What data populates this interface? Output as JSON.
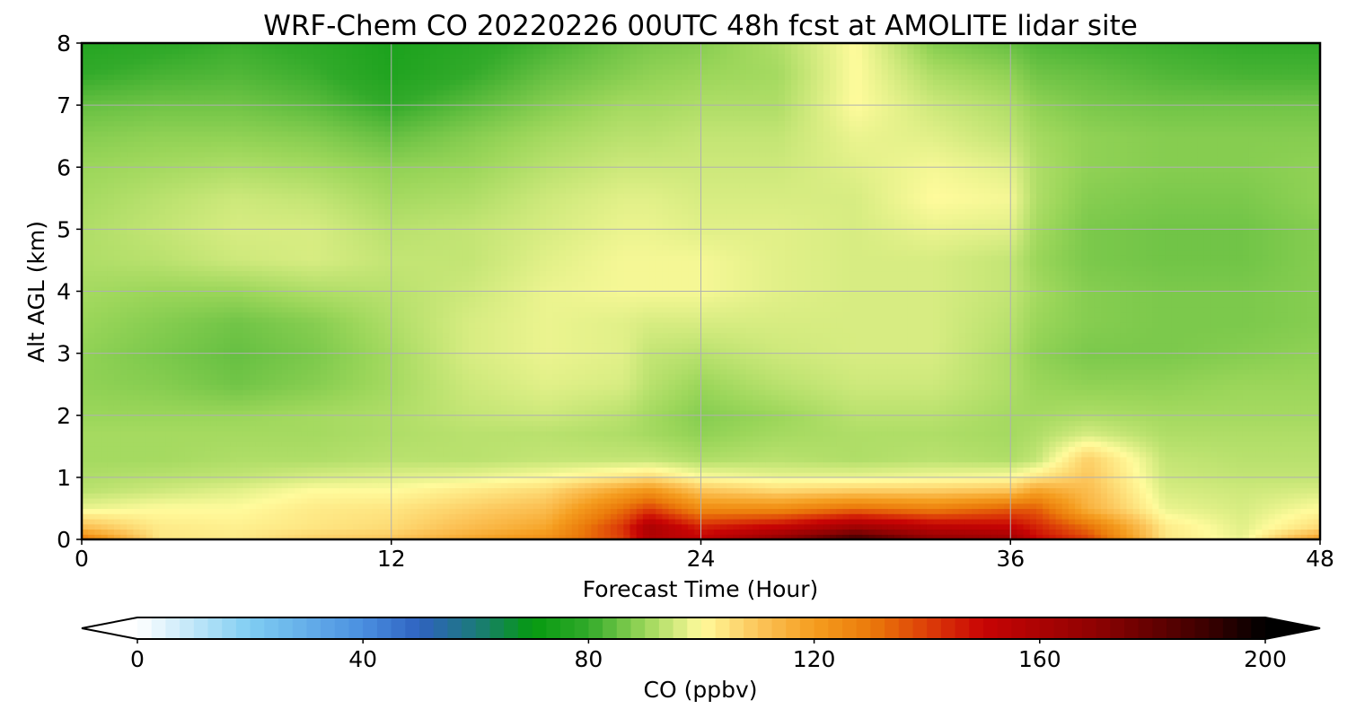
{
  "chart_data": {
    "type": "heatmap",
    "title": "WRF-Chem CO  20220226 00UTC 48h fcst at AMOLITE lidar site",
    "xlabel": "Forecast Time (Hour)",
    "ylabel": "Alt AGL (km)",
    "xlim": [
      0,
      48
    ],
    "ylim": [
      0,
      8
    ],
    "x_ticks": [
      0,
      12,
      24,
      36,
      48
    ],
    "y_ticks": [
      0,
      1,
      2,
      3,
      4,
      5,
      6,
      7,
      8
    ],
    "grid": true,
    "x_hours": [
      0,
      3,
      6,
      9,
      12,
      15,
      18,
      21,
      22,
      24,
      27,
      30,
      33,
      36,
      37,
      39,
      42,
      45,
      48
    ],
    "y_km": [
      0,
      0.2,
      0.5,
      0.8,
      1.0,
      1.3,
      1.7,
      2.0,
      2.5,
      3.0,
      3.5,
      4.0,
      4.5,
      5.0,
      5.5,
      6.0,
      6.5,
      7.0,
      7.5,
      8.0
    ],
    "values_ppbv": [
      [
        130,
        104,
        103,
        108,
        110,
        118,
        124,
        140,
        158,
        152,
        170,
        190,
        170,
        165,
        150,
        140,
        104,
        98,
        120
      ],
      [
        112,
        103,
        102,
        104,
        106,
        112,
        118,
        142,
        160,
        145,
        152,
        165,
        155,
        152,
        145,
        132,
        103,
        97,
        106
      ],
      [
        98,
        100,
        100,
        103,
        104,
        108,
        112,
        132,
        140,
        125,
        125,
        132,
        128,
        135,
        135,
        115,
        98,
        96,
        100
      ],
      [
        93,
        95,
        97,
        100,
        100,
        103,
        106,
        118,
        122,
        110,
        106,
        108,
        108,
        110,
        118,
        112,
        96,
        95,
        96
      ],
      [
        92,
        93,
        94,
        96,
        97,
        98,
        100,
        104,
        106,
        100,
        98,
        98,
        99,
        100,
        104,
        110,
        95,
        94,
        94
      ],
      [
        91,
        91,
        92,
        92,
        93,
        93,
        94,
        94,
        94,
        92,
        93,
        92,
        93,
        92,
        94,
        108,
        94,
        93,
        93
      ],
      [
        91,
        91,
        91,
        91,
        92,
        93,
        93,
        92,
        91,
        89,
        91,
        92,
        92,
        91,
        92,
        96,
        92,
        92,
        92
      ],
      [
        90,
        90,
        90,
        91,
        92,
        94,
        95,
        93,
        91,
        88,
        90,
        93,
        93,
        91,
        91,
        92,
        91,
        91,
        91
      ],
      [
        89,
        88,
        86,
        88,
        91,
        95,
        97,
        96,
        93,
        90,
        93,
        95,
        95,
        92,
        90,
        89,
        89,
        90,
        90
      ],
      [
        89,
        87,
        85,
        87,
        91,
        96,
        98,
        97,
        94,
        93,
        95,
        96,
        96,
        92,
        89,
        87,
        87,
        88,
        89
      ],
      [
        90,
        88,
        86,
        88,
        92,
        96,
        98,
        97,
        96,
        96,
        96,
        96,
        96,
        93,
        90,
        88,
        87,
        87,
        88
      ],
      [
        91,
        90,
        90,
        92,
        93,
        95,
        98,
        99,
        99,
        99,
        97,
        96,
        96,
        94,
        91,
        88,
        87,
        87,
        88
      ],
      [
        92,
        93,
        95,
        96,
        94,
        94,
        97,
        99,
        99,
        99,
        97,
        96,
        96,
        94,
        90,
        87,
        86,
        86,
        88
      ],
      [
        92,
        94,
        96,
        96,
        93,
        94,
        96,
        98,
        98,
        97,
        97,
        96,
        98,
        97,
        91,
        87,
        86,
        86,
        88
      ],
      [
        91,
        93,
        95,
        94,
        91,
        92,
        95,
        97,
        97,
        96,
        96,
        96,
        100,
        99,
        92,
        88,
        87,
        87,
        89
      ],
      [
        90,
        91,
        92,
        91,
        89,
        90,
        93,
        95,
        95,
        95,
        95,
        97,
        99,
        97,
        92,
        89,
        88,
        88,
        89
      ],
      [
        88,
        89,
        89,
        88,
        85,
        88,
        91,
        93,
        93,
        94,
        94,
        98,
        97,
        94,
        91,
        89,
        88,
        88,
        88
      ],
      [
        85,
        86,
        86,
        84,
        80,
        84,
        88,
        91,
        91,
        92,
        92,
        100,
        95,
        92,
        89,
        87,
        86,
        86,
        86
      ],
      [
        80,
        82,
        83,
        81,
        76,
        80,
        85,
        88,
        89,
        90,
        91,
        100,
        92,
        89,
        86,
        85,
        83,
        82,
        82
      ],
      [
        77,
        79,
        81,
        79,
        75,
        78,
        82,
        86,
        87,
        88,
        92,
        100,
        88,
        85,
        83,
        82,
        81,
        80,
        80
      ]
    ]
  },
  "colorbar": {
    "label": "CO  (ppbv)",
    "min": 0,
    "max": 200,
    "ticks": [
      0,
      40,
      80,
      120,
      160,
      200
    ],
    "extend": "both",
    "color_stops": [
      {
        "v": 0,
        "c": "#ffffff"
      },
      {
        "v": 20,
        "c": "#7fcdf2"
      },
      {
        "v": 40,
        "c": "#4a8fe0"
      },
      {
        "v": 50,
        "c": "#2f62c0"
      },
      {
        "v": 60,
        "c": "#1c7a7a"
      },
      {
        "v": 70,
        "c": "#059a10"
      },
      {
        "v": 80,
        "c": "#32aa2a"
      },
      {
        "v": 90,
        "c": "#9bd65a"
      },
      {
        "v": 100,
        "c": "#fffb9c"
      },
      {
        "v": 110,
        "c": "#fcc55a"
      },
      {
        "v": 120,
        "c": "#f59d1f"
      },
      {
        "v": 130,
        "c": "#eb7a0a"
      },
      {
        "v": 140,
        "c": "#dd3e08"
      },
      {
        "v": 150,
        "c": "#c80404"
      },
      {
        "v": 170,
        "c": "#8e0202"
      },
      {
        "v": 190,
        "c": "#3a0000"
      },
      {
        "v": 200,
        "c": "#000000"
      }
    ]
  }
}
